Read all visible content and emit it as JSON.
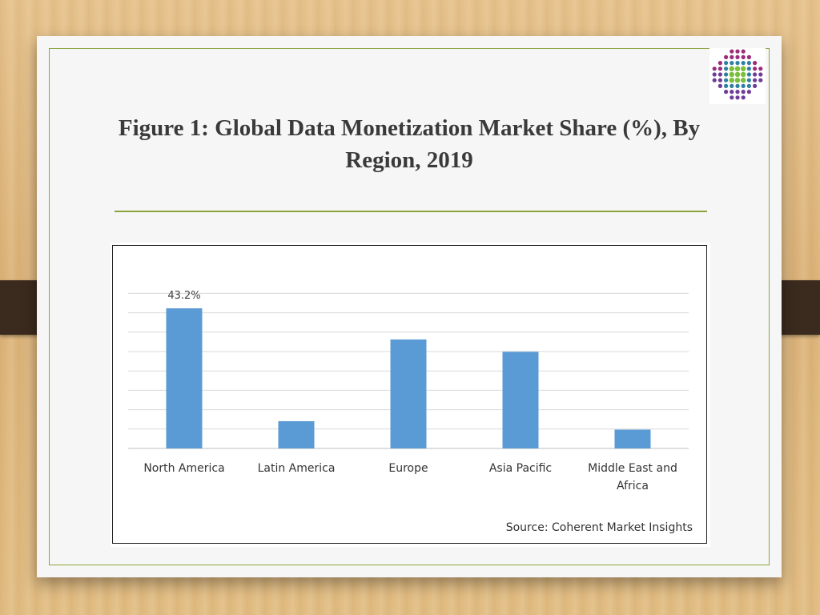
{
  "title": "Figure 1: Global Data Monetization Market Share (%), By Region, 2019",
  "logo": {
    "name": "company-logo"
  },
  "source": "Source: Coherent Market Insights",
  "colors": {
    "bar": "#5b9bd5",
    "grid": "#d9d9d9",
    "frame": "#8aa33c"
  },
  "chart_data": {
    "type": "bar",
    "categories": [
      "North America",
      "Latin America",
      "Europe",
      "Asia Pacific",
      "Middle East and Africa"
    ],
    "values": [
      43.2,
      8.4,
      33.6,
      29.8,
      5.8
    ],
    "data_labels": [
      "43.2%",
      null,
      null,
      null,
      null
    ],
    "ylim": [
      0,
      50
    ],
    "ytick_step": 6.1,
    "grid": true,
    "legend": "none",
    "y_axis_labels_shown": false
  }
}
